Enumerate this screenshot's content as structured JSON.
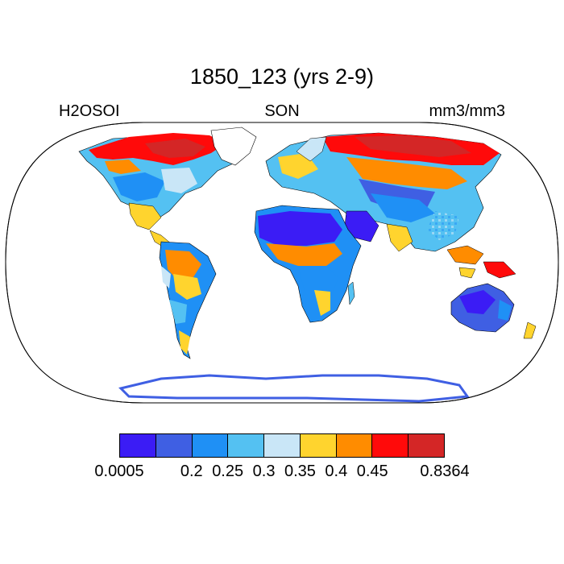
{
  "title": "1850_123 (yrs 2-9)",
  "left_label": "H2OSOI",
  "center_label": "SON",
  "right_label": "mm3/mm3",
  "colorbar": {
    "colors": [
      "#3b1cf5",
      "#3f5fe3",
      "#1f90f5",
      "#54c1f2",
      "#c9e6f7",
      "#ffd42e",
      "#ff8c00",
      "#ff0a0a",
      "#d42626"
    ],
    "labels": [
      "0.0005",
      "",
      "0.2",
      "0.25",
      "0.3",
      "0.35",
      "0.4",
      "0.45",
      "",
      "0.8364"
    ]
  },
  "colors": {
    "ocean": "#ffffff",
    "coast": "#000000"
  }
}
